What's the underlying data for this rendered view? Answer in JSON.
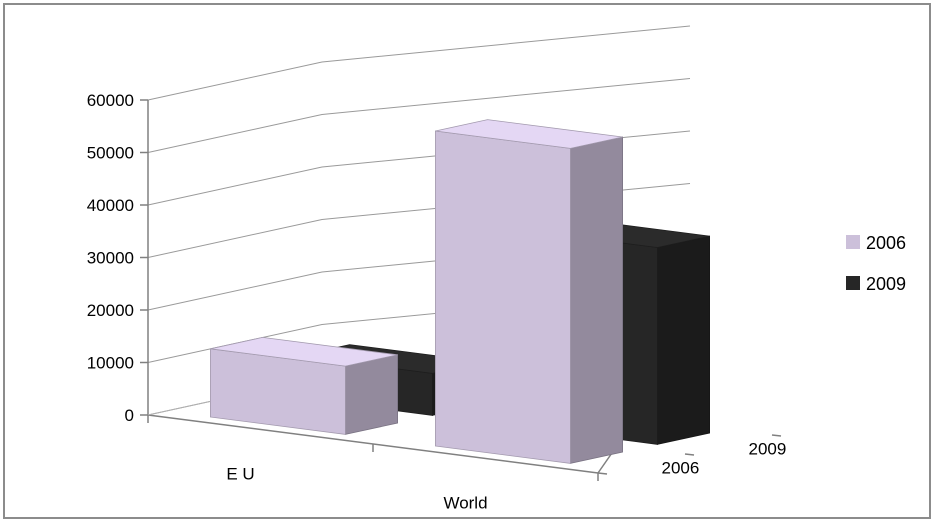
{
  "chart_data": {
    "type": "bar",
    "categories": [
      "E U",
      "World"
    ],
    "series": [
      {
        "name": "2006",
        "values": [
          13000,
          60000
        ],
        "color": "#ccc0da"
      },
      {
        "name": "2009",
        "values": [
          8000,
          37500
        ],
        "color": "#262626"
      }
    ],
    "depth_labels": [
      "2006",
      "2009"
    ],
    "y_ticks": [
      "0",
      "10000",
      "20000",
      "30000",
      "40000",
      "50000",
      "60000"
    ],
    "ylim": [
      0,
      60000
    ],
    "legend_position": "right",
    "grid": true
  }
}
